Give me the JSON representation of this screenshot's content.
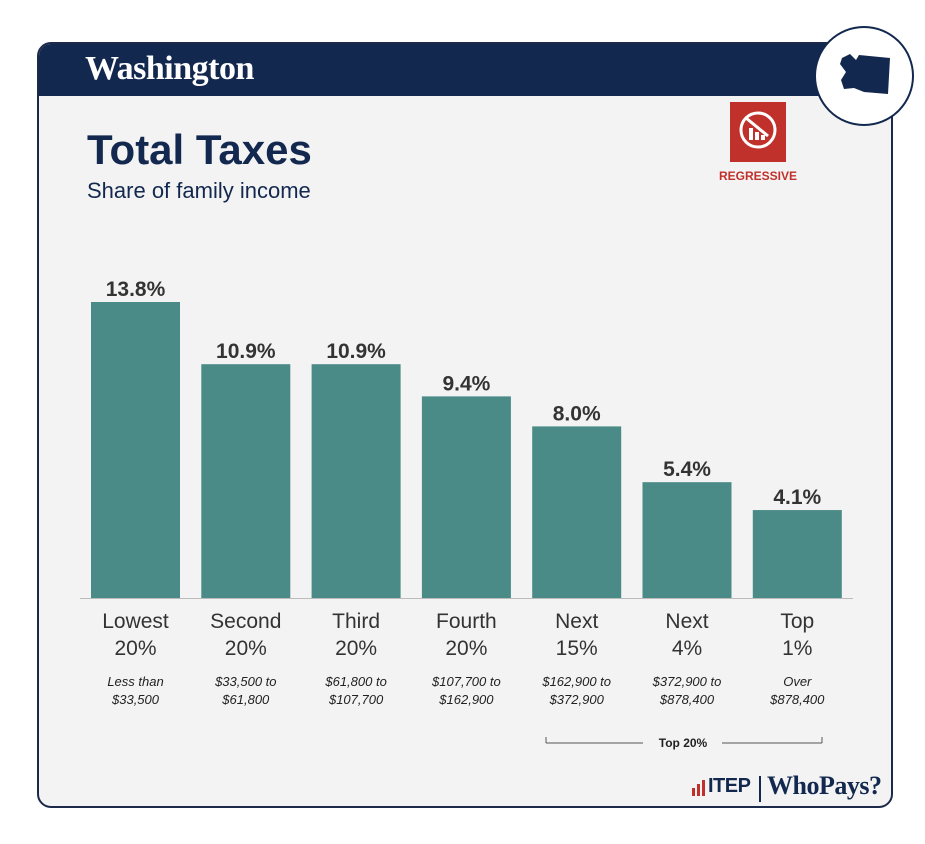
{
  "header": {
    "state": "Washington"
  },
  "title": "Total Taxes",
  "subtitle": "Share of family income",
  "badge": {
    "label": "REGRESSIVE",
    "color": "#c0312b"
  },
  "group_label": "Top 20%",
  "logos": {
    "itep": "ITEP",
    "whopays": "WhoPays?"
  },
  "colors": {
    "bar": "#4a8a87",
    "navy": "#13284f",
    "accent": "#c0312b"
  },
  "chart_data": {
    "type": "bar",
    "categories": [
      {
        "line1": "Lowest",
        "line2": "20%",
        "range1": "Less than",
        "range2": "$33,500"
      },
      {
        "line1": "Second",
        "line2": "20%",
        "range1": "$33,500 to",
        "range2": "$61,800"
      },
      {
        "line1": "Third",
        "line2": "20%",
        "range1": "$61,800 to",
        "range2": "$107,700"
      },
      {
        "line1": "Fourth",
        "line2": "20%",
        "range1": "$107,700 to",
        "range2": "$162,900"
      },
      {
        "line1": "Next",
        "line2": "15%",
        "range1": "$162,900 to",
        "range2": "$372,900"
      },
      {
        "line1": "Next",
        "line2": "4%",
        "range1": "$372,900 to",
        "range2": "$878,400"
      },
      {
        "line1": "Top",
        "line2": "1%",
        "range1": "Over",
        "range2": "$878,400"
      }
    ],
    "values": [
      13.8,
      10.9,
      10.9,
      9.4,
      8.0,
      5.4,
      4.1
    ],
    "value_labels": [
      "13.8%",
      "10.9%",
      "10.9%",
      "9.4%",
      "8.0%",
      "5.4%",
      "4.1%"
    ],
    "ylim": [
      0,
      13.8
    ],
    "grid": false,
    "legend": "none"
  }
}
